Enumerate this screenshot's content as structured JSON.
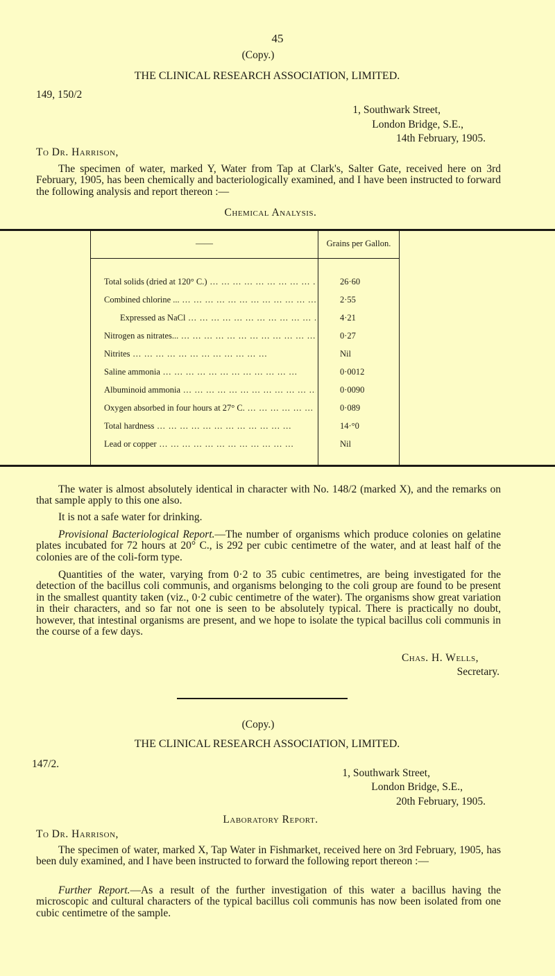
{
  "page_number": "45",
  "letter1": {
    "copy": "(Copy.)",
    "org": "THE CLINICAL RESEARCH ASSOCIATION, LIMITED.",
    "ref": "149, 150/2",
    "address": [
      "1, Southwark Street,",
      "London Bridge, S.E.,",
      "14th February, 1905."
    ],
    "salutation": "To Dr. Harrison,",
    "intro": "The specimen of water, marked Y, Water from Tap at Clark's, Salter Gate, received here on 3rd February, 1905, has been chemically and bacteriologically examined, and I have been instructed to forward the following analysis and report thereon :—",
    "table_title": "Chemical Analysis.",
    "table": {
      "headers": [
        "——",
        "Grains per Gallon."
      ],
      "rows": [
        {
          "label": "Total solids (dried at 120° C.)",
          "value": "26·60"
        },
        {
          "label": "Combined chlorine ...",
          "value": "2·55"
        },
        {
          "label": "Expressed as NaCl",
          "value": "4·21"
        },
        {
          "label": "Nitrogen as nitrates...",
          "value": "0·27"
        },
        {
          "label": "Nitrites",
          "value": "Nil"
        },
        {
          "label": "Saline ammonia",
          "value": "0·0012"
        },
        {
          "label": "Albuminoid ammonia",
          "value": "0·0090"
        },
        {
          "label": "Oxygen absorbed in four hours at 27° C.",
          "value": "0·089"
        },
        {
          "label": "Total hardness",
          "value": "14·°0"
        },
        {
          "label": "Lead or copper",
          "value": "Nil"
        }
      ]
    },
    "para1": "The water is almost absolutely identical in character with No. 148/2 (marked X), and the remarks on that sample apply to this one also.",
    "para2": "It is not a safe water for drinking.",
    "para3_heading": "Provisional Bacteriological Report.",
    "para3": "—The number of organisms which produce colonies on gelatine plates incubated for 72 hours at 20° C., is 292 per cubic centimetre of the water, and at least half of the colonies are of the coli-form type.",
    "para4": "Quantities of the water, varying from 0·2 to 35 cubic centimetres, are being investigated for the detection of the bacillus coli communis, and organisms belonging to the coli group are found to be present in the smallest quantity taken (viz., 0·2 cubic centimetre of the water). The organisms show great variation in their characters, and so far not one is seen to be absolutely typical. There is practically no doubt, however, that intestinal organisms are present, and we hope to isolate the typical bacillus coli communis in the course of a few days.",
    "signature": "Chas. H. Wells,",
    "signature_title": "Secretary."
  },
  "letter2": {
    "copy": "(Copy.)",
    "org": "THE CLINICAL RESEARCH ASSOCIATION, LIMITED.",
    "ref": "147/2.",
    "address": [
      "1, Southwark Street,",
      "London Bridge, S.E.,",
      "20th February, 1905."
    ],
    "heading": "Laboratory Report.",
    "salutation": "To Dr. Harrison,",
    "intro": "The specimen of water, marked X, Tap Water in Fishmarket, received here on 3rd February, 1905, has been duly examined, and I have been instructed to forward the following report thereon :—",
    "para_heading": "Further Report.",
    "para": "—As a result of the further investigation of this water a bacillus having the microscopic and cultural characters of the typical bacillus coli communis has now been isolated from one cubic centimetre of the sample."
  }
}
